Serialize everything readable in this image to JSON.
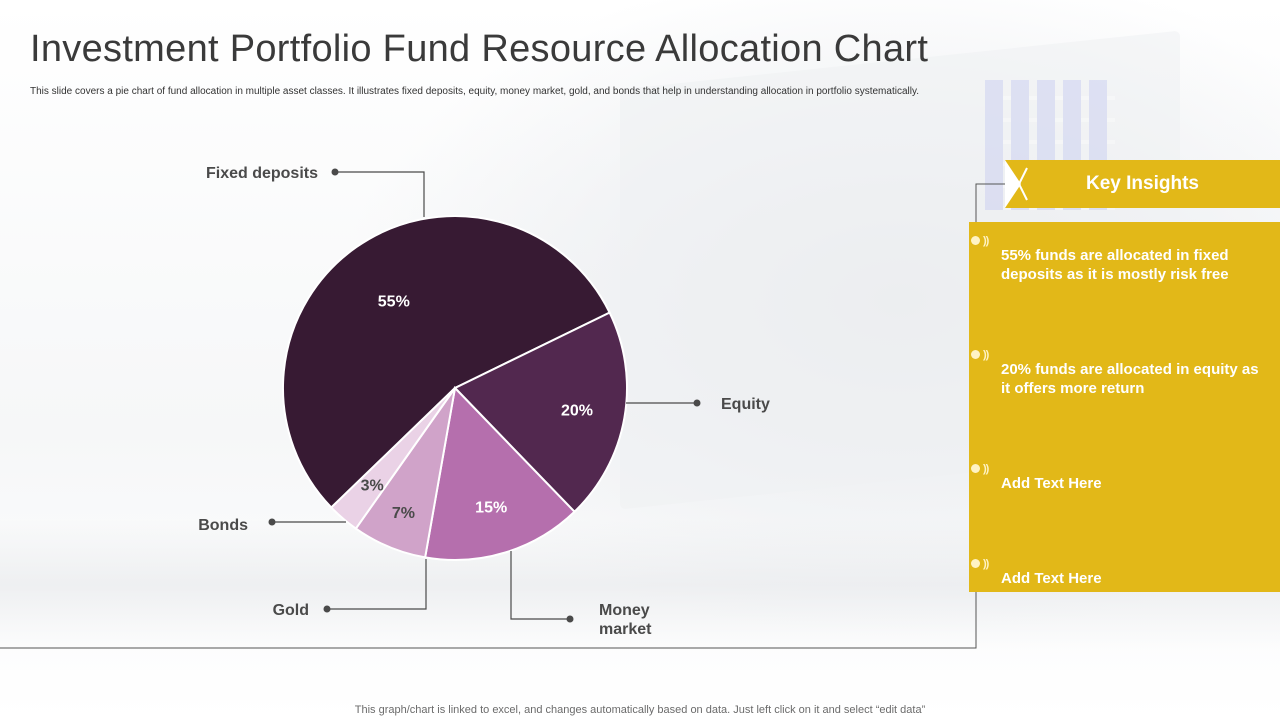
{
  "slide": {
    "title": "Investment Portfolio Fund Resource Allocation Chart",
    "subtitle": "This slide covers a pie chart of fund allocation in multiple asset classes. It illustrates fixed deposits, equity, money market, gold, and bonds that help in understanding allocation in portfolio systematically.",
    "footer": "This graph/chart is linked to excel, and changes automatically based on data. Just left click on it and select “edit data”"
  },
  "chart_data": {
    "type": "pie",
    "title": "",
    "slices": [
      {
        "label": "Fixed deposits",
        "value": 55,
        "display": "55%",
        "color": "#371a33",
        "text_color": "#ffffff"
      },
      {
        "label": "Equity",
        "value": 20,
        "display": "20%",
        "color": "#52284f",
        "text_color": "#ffffff"
      },
      {
        "label": "Money market",
        "value": 15,
        "display": "15%",
        "color": "#b56fad",
        "text_color": "#ffffff"
      },
      {
        "label": "Gold",
        "value": 7,
        "display": "7%",
        "color": "#d0a3c9",
        "text_color": "#4a4a4a"
      },
      {
        "label": "Bonds",
        "value": 3,
        "display": "3%",
        "color": "#ead2e6",
        "text_color": "#4a4a4a"
      }
    ],
    "start_angle_deg": -26,
    "direction": "clockwise"
  },
  "insights": {
    "title": "Key Insights",
    "items": [
      {
        "text": "55% funds are allocated in fixed deposits as it is mostly risk free"
      },
      {
        "text": "20% funds are allocated in equity as it offers more return"
      },
      {
        "text": "Add Text Here"
      },
      {
        "text": "Add Text Here"
      }
    ],
    "arrow_glyph": "))",
    "accent_color": "#e2b818"
  }
}
